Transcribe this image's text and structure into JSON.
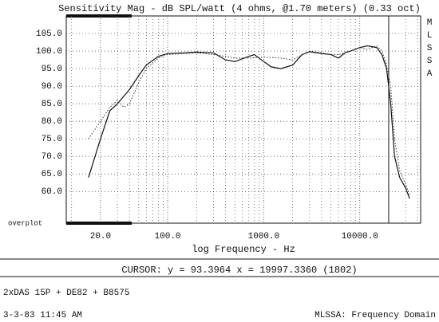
{
  "chart_data": {
    "type": "line",
    "title": "Sensitivity Mag - dB SPL/watt (4 ohms, @1.70 meters) (0.33 oct)",
    "side_label": [
      "M",
      "L",
      "S",
      "S",
      "A"
    ],
    "corner_label": "overplot",
    "x_label": "log Frequency - Hz",
    "log_x": true,
    "grid": true,
    "xlim": [
      8.8,
      43000
    ],
    "ylim": [
      51,
      110
    ],
    "xticks": [
      {
        "value": 20,
        "label": "20.0"
      },
      {
        "value": 100,
        "label": "100.0"
      },
      {
        "value": 1000,
        "label": "1000.0"
      },
      {
        "value": 10000,
        "label": "10000.0"
      }
    ],
    "xminor": [
      10,
      30,
      40,
      50,
      60,
      70,
      80,
      90,
      200,
      300,
      400,
      500,
      600,
      700,
      800,
      900,
      2000,
      3000,
      4000,
      5000,
      6000,
      7000,
      8000,
      9000,
      20000,
      30000,
      40000
    ],
    "yticks": [
      {
        "value": 60,
        "label": "60.0"
      },
      {
        "value": 65,
        "label": "65.0"
      },
      {
        "value": 70,
        "label": "70.0"
      },
      {
        "value": 75,
        "label": "75.0"
      },
      {
        "value": 80,
        "label": "80.0"
      },
      {
        "value": 85,
        "label": "85.0"
      },
      {
        "value": 90,
        "label": "90.0"
      },
      {
        "value": 95,
        "label": "95.0"
      },
      {
        "value": 100,
        "label": "100.0"
      },
      {
        "value": 105,
        "label": "105.0"
      }
    ],
    "series": [
      {
        "style": "solid",
        "color": "#111111",
        "x": [
          15,
          20,
          25,
          30,
          40,
          50,
          60,
          80,
          100,
          150,
          200,
          300,
          400,
          500,
          700,
          800,
          1000,
          1200,
          1500,
          2000,
          2500,
          3000,
          4000,
          5000,
          6000,
          7000,
          8000,
          10000,
          12000,
          15000,
          17000,
          19000,
          21000,
          23000,
          26000,
          30000,
          33000
        ],
        "values": [
          64,
          75,
          83,
          85,
          89,
          93,
          96,
          98.5,
          99.3,
          99.5,
          99.7,
          99.5,
          97.5,
          97,
          98.5,
          99,
          97,
          95.5,
          95,
          96,
          99,
          99.8,
          99.3,
          99,
          98,
          99.5,
          100,
          101,
          101.5,
          101,
          99,
          95,
          85,
          70,
          64,
          61,
          58
        ]
      },
      {
        "style": "dotted",
        "color": "#333333",
        "x": [
          15,
          20,
          25,
          30,
          35,
          40,
          50,
          60,
          80,
          100,
          200,
          300,
          400,
          500,
          700,
          1000,
          1500,
          2000,
          3000,
          4000,
          5000,
          6000,
          8000,
          10000,
          12000,
          15000,
          17000,
          19000,
          21000,
          23000,
          26000,
          30000,
          33000
        ],
        "values": [
          75,
          80,
          84,
          86,
          84,
          85,
          91,
          95,
          98,
          99,
          99.5,
          99,
          98.5,
          98,
          98,
          98.3,
          98,
          97.5,
          100,
          99.5,
          99,
          99,
          100,
          101,
          100.5,
          101.5,
          100,
          96,
          90,
          75,
          66,
          62,
          59
        ]
      }
    ],
    "cursor": {
      "x": 19997.336,
      "text": "CURSOR: y = 93.3964 x = 19997.3360 (1802)"
    },
    "notes": [
      "2xDAS 15P + DE82 + B8575"
    ],
    "footer_left": "3-3-83 11:45 AM",
    "footer_right": "MLSSA: Frequency Domain"
  }
}
